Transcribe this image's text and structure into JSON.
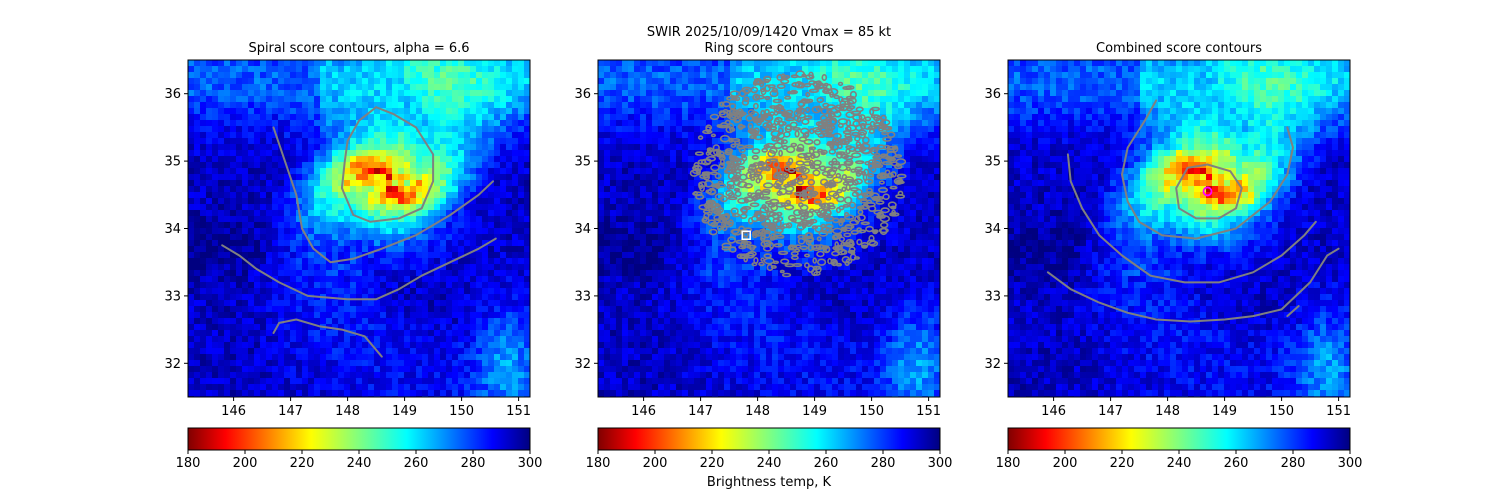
{
  "figure": {
    "suptitle": "SWIR  2025/10/09/1420    Vmax = 85 kt",
    "colorbar_label": "Brightness temp, K",
    "colormap": "jet_r",
    "contour_color": "#808080"
  },
  "chart_data": [
    {
      "type": "heatmap",
      "title": "Spiral score contours, alpha =  6.6",
      "xlim": [
        145.2,
        151.2
      ],
      "ylim": [
        31.5,
        36.5
      ],
      "xticks": [
        "146",
        "147",
        "148",
        "149",
        "150",
        "151"
      ],
      "yticks": [
        "32",
        "33",
        "34",
        "35",
        "36"
      ],
      "colorbar": {
        "range": [
          180,
          300
        ],
        "ticks": [
          "180",
          "200",
          "220",
          "240",
          "260",
          "280",
          "300"
        ]
      },
      "contours": [
        {
          "name": "spiral-contour-core",
          "points": [
            [
              148.5,
              35.8
            ],
            [
              148.8,
              35.7
            ],
            [
              149.2,
              35.5
            ],
            [
              149.5,
              35.1
            ],
            [
              149.5,
              34.7
            ],
            [
              149.3,
              34.3
            ],
            [
              148.9,
              34.15
            ],
            [
              148.4,
              34.1
            ],
            [
              148.1,
              34.2
            ],
            [
              147.9,
              34.6
            ],
            [
              147.95,
              35.0
            ],
            [
              148.0,
              35.3
            ],
            [
              148.2,
              35.6
            ],
            [
              148.5,
              35.8
            ]
          ]
        },
        {
          "name": "spiral-contour-arm-1",
          "points": [
            [
              146.7,
              35.5
            ],
            [
              146.9,
              35.0
            ],
            [
              147.1,
              34.5
            ],
            [
              147.2,
              34.0
            ],
            [
              147.4,
              33.7
            ],
            [
              147.7,
              33.5
            ],
            [
              148.1,
              33.55
            ],
            [
              148.6,
              33.7
            ],
            [
              149.2,
              33.9
            ],
            [
              149.8,
              34.2
            ],
            [
              150.3,
              34.5
            ],
            [
              150.55,
              34.7
            ]
          ]
        },
        {
          "name": "spiral-contour-arm-2",
          "points": [
            [
              145.8,
              33.75
            ],
            [
              146.1,
              33.6
            ],
            [
              146.4,
              33.4
            ],
            [
              146.8,
              33.2
            ],
            [
              147.3,
              33.0
            ],
            [
              148.0,
              32.95
            ],
            [
              148.5,
              32.95
            ],
            [
              148.9,
              33.1
            ],
            [
              149.3,
              33.3
            ],
            [
              149.8,
              33.5
            ],
            [
              150.3,
              33.7
            ],
            [
              150.6,
              33.85
            ]
          ]
        },
        {
          "name": "spiral-contour-arm-3",
          "points": [
            [
              146.7,
              32.45
            ],
            [
              146.8,
              32.6
            ],
            [
              147.1,
              32.65
            ],
            [
              147.5,
              32.55
            ],
            [
              147.9,
              32.5
            ],
            [
              148.3,
              32.4
            ],
            [
              148.6,
              32.1
            ]
          ]
        }
      ],
      "marker": null
    },
    {
      "type": "heatmap",
      "title": "Ring score contours",
      "xlim": [
        145.2,
        151.2
      ],
      "ylim": [
        31.5,
        36.5
      ],
      "xticks": [
        "146",
        "147",
        "148",
        "149",
        "150",
        "151"
      ],
      "yticks": [
        "32",
        "33",
        "34",
        "35",
        "36"
      ],
      "colorbar": {
        "range": [
          180,
          300
        ],
        "ticks": [
          "180",
          "200",
          "220",
          "240",
          "260",
          "280",
          "300"
        ]
      },
      "ring_region": {
        "center": [
          148.7,
          34.8
        ],
        "rx_deg": 1.85,
        "ry_deg": 1.5
      },
      "contours": [],
      "marker": {
        "shape": "square",
        "x": 147.8,
        "y": 33.9,
        "color": "#ffffff"
      }
    },
    {
      "type": "heatmap",
      "title": "Combined score contours",
      "xlim": [
        145.2,
        151.2
      ],
      "ylim": [
        31.5,
        36.5
      ],
      "xticks": [
        "146",
        "147",
        "148",
        "149",
        "150",
        "151"
      ],
      "yticks": [
        "32",
        "33",
        "34",
        "35",
        "36"
      ],
      "colorbar": {
        "range": [
          180,
          300
        ],
        "ticks": [
          "180",
          "200",
          "220",
          "240",
          "260",
          "280",
          "300"
        ]
      },
      "contours": [
        {
          "name": "combined-contour-center",
          "points": [
            [
              148.7,
              34.95
            ],
            [
              149.1,
              34.85
            ],
            [
              149.3,
              34.6
            ],
            [
              149.2,
              34.3
            ],
            [
              148.9,
              34.15
            ],
            [
              148.5,
              34.15
            ],
            [
              148.2,
              34.3
            ],
            [
              148.15,
              34.6
            ],
            [
              148.35,
              34.9
            ],
            [
              148.7,
              34.95
            ]
          ]
        },
        {
          "name": "combined-contour-arm-1",
          "points": [
            [
              147.8,
              35.9
            ],
            [
              147.6,
              35.6
            ],
            [
              147.3,
              35.2
            ],
            [
              147.2,
              34.8
            ],
            [
              147.3,
              34.4
            ],
            [
              147.5,
              34.1
            ],
            [
              147.9,
              33.9
            ],
            [
              148.5,
              33.85
            ],
            [
              149.2,
              34.0
            ],
            [
              149.8,
              34.4
            ],
            [
              150.1,
              34.8
            ],
            [
              150.2,
              35.2
            ],
            [
              150.1,
              35.5
            ]
          ]
        },
        {
          "name": "combined-contour-arm-2",
          "points": [
            [
              146.25,
              35.1
            ],
            [
              146.3,
              34.7
            ],
            [
              146.5,
              34.3
            ],
            [
              146.8,
              33.9
            ],
            [
              147.2,
              33.6
            ],
            [
              147.7,
              33.3
            ],
            [
              148.3,
              33.2
            ],
            [
              148.9,
              33.2
            ],
            [
              149.5,
              33.35
            ],
            [
              150.0,
              33.6
            ],
            [
              150.4,
              33.9
            ],
            [
              150.6,
              34.1
            ]
          ]
        },
        {
          "name": "combined-contour-arm-3",
          "points": [
            [
              145.9,
              33.35
            ],
            [
              146.3,
              33.1
            ],
            [
              146.8,
              32.9
            ],
            [
              147.3,
              32.75
            ],
            [
              147.8,
              32.65
            ],
            [
              148.4,
              32.62
            ],
            [
              149.0,
              32.65
            ],
            [
              149.5,
              32.7
            ],
            [
              150.0,
              32.8
            ],
            [
              150.5,
              33.2
            ],
            [
              150.8,
              33.6
            ],
            [
              151.0,
              33.7
            ]
          ]
        },
        {
          "name": "combined-contour-arm-4",
          "points": [
            [
              150.1,
              32.7
            ],
            [
              150.3,
              32.85
            ]
          ]
        }
      ],
      "marker": {
        "shape": "circle",
        "x": 148.7,
        "y": 34.55,
        "color": "#ff00ff"
      }
    }
  ]
}
